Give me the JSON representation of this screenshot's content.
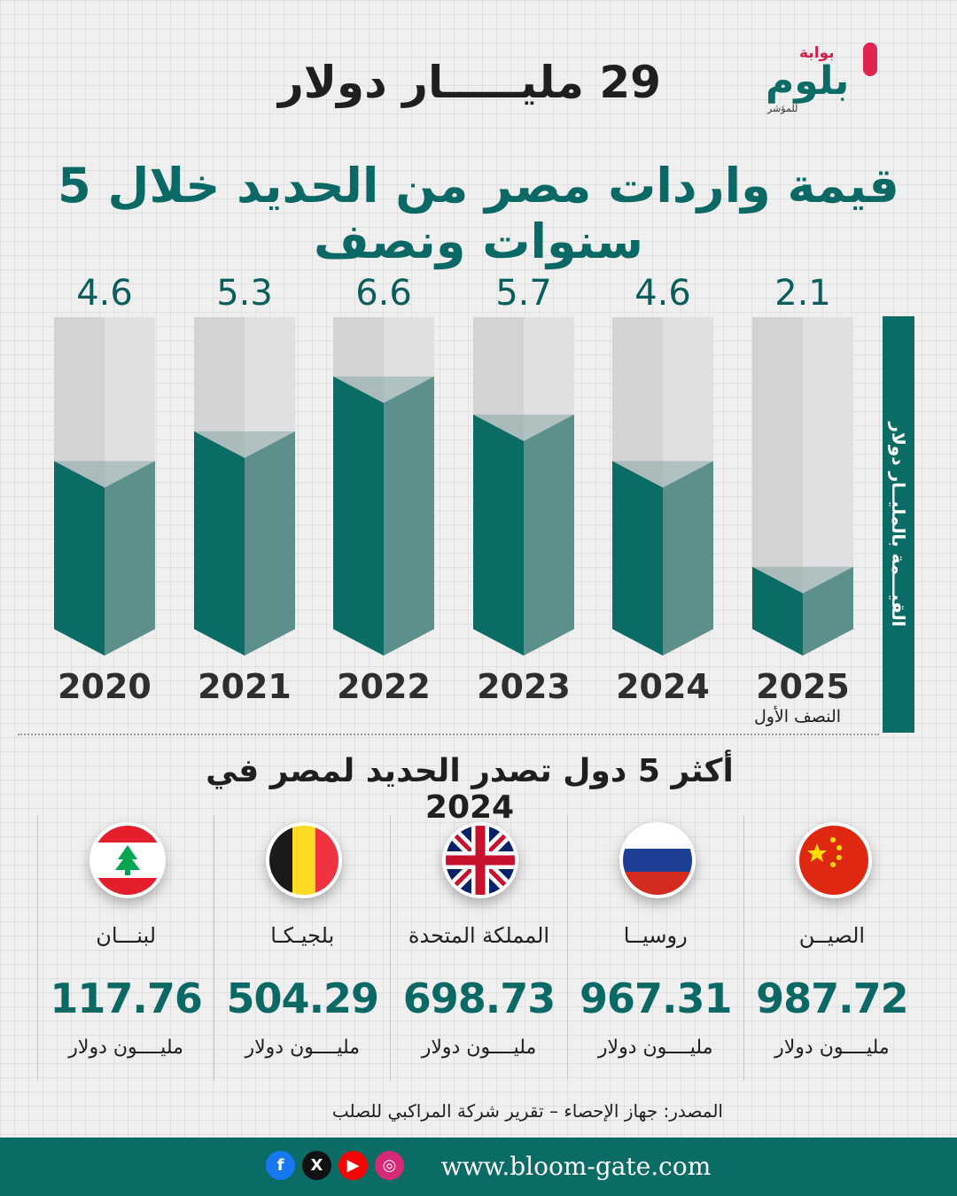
{
  "brand": {
    "top": "بوابة",
    "name": "بلوم",
    "tagline": "للمؤشر"
  },
  "header": {
    "headline": "29 مليـــــار دولار",
    "title": "قيمة واردات مصر من الحديد خلال 5 سنوات ونصف"
  },
  "chart_data": {
    "type": "bar",
    "categories": [
      "2020",
      "2021",
      "2022",
      "2023",
      "2024",
      "2025"
    ],
    "values": [
      4.6,
      5.3,
      6.6,
      5.7,
      4.6,
      2.1
    ],
    "value_labels": [
      "4.6",
      "5.3",
      "6.6",
      "5.7",
      "4.6",
      "2.1"
    ],
    "ylabel": "القيـــمة بالمليــار دولار",
    "ylim": [
      0,
      8
    ],
    "category_note": {
      "category": "2025",
      "text": "النصف الأول"
    },
    "grid": false,
    "colors": {
      "fill_front": "#0b6b65",
      "fill_side": "#5d8f8c",
      "empty_front": "#d3d3d5",
      "empty_side": "#e0e0e2",
      "label": "#2e2e2e",
      "value": "#075e5a"
    }
  },
  "countries_section": {
    "title": "أكثر 5 دول تصدر الحديد لمصر في 2024",
    "unit": "مليــــون دولار",
    "items": [
      {
        "name": "لبنـــان",
        "value": "117.76",
        "flag": "lebanon-flag"
      },
      {
        "name": "بلجيـكـا",
        "value": "504.29",
        "flag": "belgium-flag"
      },
      {
        "name": "المملكة المتحدة",
        "value": "698.73",
        "flag": "uk-flag"
      },
      {
        "name": "روسيــا",
        "value": "967.31",
        "flag": "russia-flag"
      },
      {
        "name": "الصيــن",
        "value": "987.72",
        "flag": "china-flag"
      }
    ]
  },
  "source": "المصدر: جهاز الإحصاء – تقرير شركة المراكبي للصلب",
  "footer": {
    "website": "www.bloom-gate.com",
    "social": [
      "facebook-icon",
      "x-icon",
      "youtube-icon",
      "instagram-icon"
    ],
    "colors": {
      "facebook": "#1877f2",
      "x": "#111111",
      "youtube": "#ff0000",
      "instagram": "#d62976"
    }
  }
}
